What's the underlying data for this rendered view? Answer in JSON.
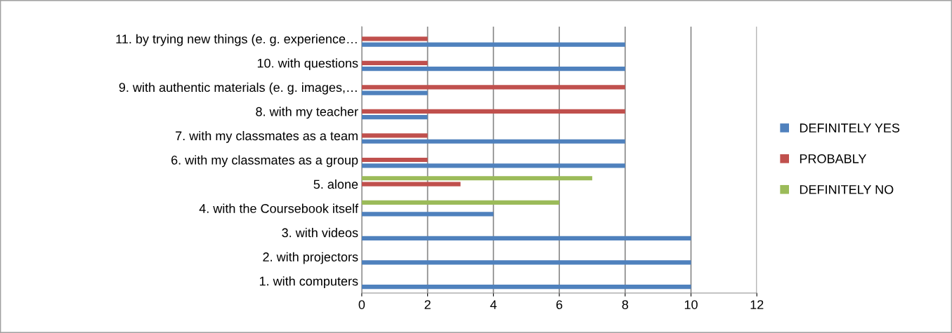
{
  "chart_data": {
    "type": "bar",
    "orientation": "horizontal",
    "categories": [
      "11. by trying new things (e. g. experience…",
      "10. with questions",
      "9. with authentic materials (e. g. images,…",
      "8. with my teacher",
      "7. with my classmates as a team",
      "6. with my classmates as a group",
      "5. alone",
      "4. with the Coursebook itself",
      "3. with videos",
      "2. with projectors",
      "1. with computers"
    ],
    "series": [
      {
        "name": "DEFINITELY NO",
        "color": "#9bbb59",
        "values": [
          null,
          null,
          null,
          null,
          null,
          null,
          7,
          6,
          null,
          null,
          null
        ]
      },
      {
        "name": "PROBABLY",
        "color": "#c0504d",
        "values": [
          2,
          2,
          8,
          8,
          2,
          2,
          3,
          null,
          null,
          null,
          null
        ]
      },
      {
        "name": "DEFINITELY YES",
        "color": "#4f81bd",
        "values": [
          8,
          8,
          2,
          2,
          8,
          8,
          null,
          4,
          10,
          10,
          10
        ]
      }
    ],
    "xlim": [
      0,
      12
    ],
    "xticks": [
      0,
      2,
      4,
      6,
      8,
      10,
      12
    ],
    "grid": "x",
    "legend": "right"
  }
}
